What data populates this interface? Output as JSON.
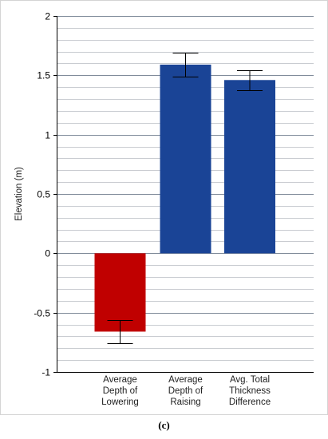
{
  "chart_data": {
    "type": "bar",
    "title": "",
    "xlabel": "",
    "ylabel": "Elevation (m)",
    "ylim": [
      -1,
      2
    ],
    "grid": true,
    "categories": [
      [
        "Average",
        "Depth of",
        "Lowering"
      ],
      [
        "Average",
        "Depth of",
        "Raising"
      ],
      [
        "Avg. Total",
        "Thickness",
        "Difference"
      ]
    ],
    "values": [
      -0.66,
      1.59,
      1.46
    ],
    "error": [
      0.1,
      0.1,
      0.085
    ],
    "colors": [
      "#c00000",
      "#1a4496",
      "#1a4496"
    ],
    "yticks": [
      {
        "value": 2,
        "label": "2"
      },
      {
        "value": 1.5,
        "label": "1.5"
      },
      {
        "value": 1,
        "label": "1"
      },
      {
        "value": 0.5,
        "label": "0.5"
      },
      {
        "value": 0,
        "label": "0"
      },
      {
        "value": -0.5,
        "label": "-0.5"
      },
      {
        "value": -1,
        "label": "-1"
      }
    ],
    "minor_grid_step": 0.1
  },
  "figure": {
    "panel_label": "(c)"
  }
}
